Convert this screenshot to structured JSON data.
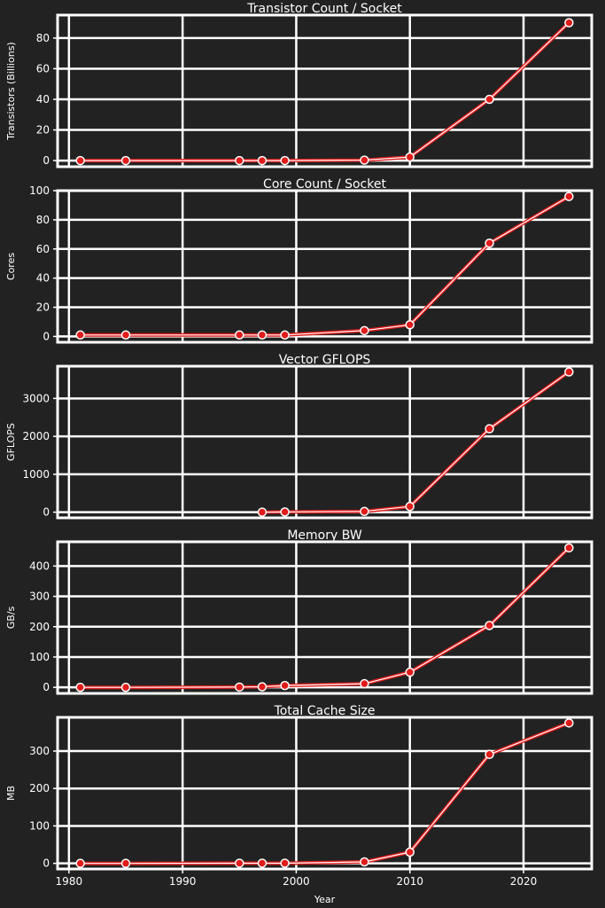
{
  "colors": {
    "background": "#222222",
    "grid": "#ffffff",
    "line": "#e01b1b",
    "marker": "#e01b1b",
    "marker_edge": "#ffffff",
    "text": "#ffffff"
  },
  "xaxis": {
    "label": "Year",
    "ticks": [
      1980,
      1990,
      2000,
      2010,
      2020
    ],
    "range": [
      1979,
      2026
    ]
  },
  "chart_data": [
    {
      "type": "line",
      "title": "Transistor Count / Socket",
      "ylabel": "Transistors (Billions)",
      "ylim": [
        -4,
        95
      ],
      "yticks": [
        0,
        20,
        40,
        60,
        80
      ],
      "grid": true,
      "x": [
        1981,
        1985,
        1995,
        1997,
        1999,
        2006,
        2010,
        2017,
        2024
      ],
      "values": [
        0,
        0,
        0,
        0,
        0,
        0.3,
        2.3,
        40,
        90
      ]
    },
    {
      "type": "line",
      "title": "Core Count / Socket",
      "ylabel": "Cores",
      "ylim": [
        -4,
        100
      ],
      "yticks": [
        0,
        20,
        40,
        60,
        80,
        100
      ],
      "grid": true,
      "x": [
        1981,
        1985,
        1995,
        1997,
        1999,
        2006,
        2010,
        2017,
        2024
      ],
      "values": [
        1,
        1,
        1,
        1,
        1,
        4,
        8,
        64,
        96
      ]
    },
    {
      "type": "line",
      "title": "Vector GFLOPS",
      "ylabel": "GFLOPS",
      "ylim": [
        -150,
        3850
      ],
      "yticks": [
        0,
        1000,
        2000,
        3000
      ],
      "grid": true,
      "x": [
        1997,
        1999,
        2006,
        2010,
        2017,
        2024
      ],
      "values": [
        0,
        5,
        20,
        150,
        2200,
        3700
      ]
    },
    {
      "type": "line",
      "title": "Memory BW",
      "ylabel": "GB/s",
      "ylim": [
        -20,
        480
      ],
      "yticks": [
        0,
        100,
        200,
        300,
        400
      ],
      "grid": true,
      "x": [
        1981,
        1985,
        1995,
        1997,
        1999,
        2006,
        2010,
        2017,
        2024
      ],
      "values": [
        0,
        0,
        1,
        2,
        6,
        12,
        50,
        204,
        460
      ]
    },
    {
      "type": "line",
      "title": "Total Cache Size",
      "ylabel": "MB",
      "ylim": [
        -15,
        390
      ],
      "yticks": [
        0,
        100,
        200,
        300
      ],
      "grid": true,
      "x": [
        1981,
        1985,
        1995,
        1997,
        1999,
        2006,
        2010,
        2017,
        2024
      ],
      "values": [
        0,
        0,
        0.5,
        0.5,
        0.5,
        4,
        30,
        291,
        375
      ]
    }
  ]
}
